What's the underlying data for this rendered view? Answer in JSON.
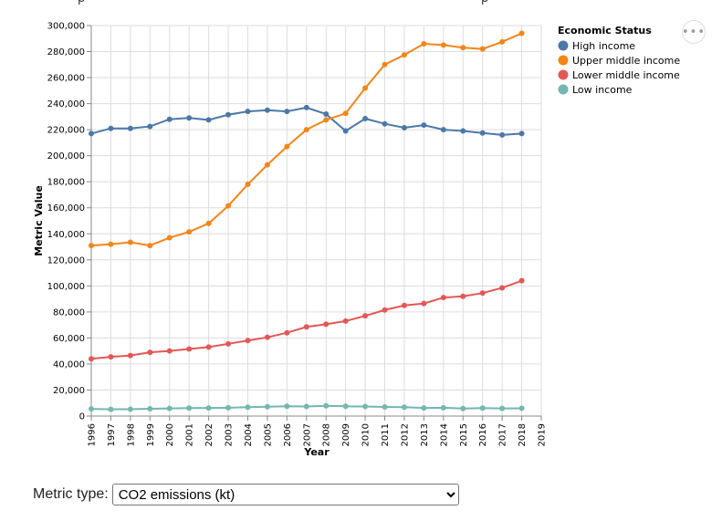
{
  "top_text": "p",
  "top_text2": "p",
  "actions_icon": "more-horizontal-icon",
  "control": {
    "label": "Metric type:",
    "selected": "CO2 emissions (kt)",
    "options": [
      "CO2 emissions (kt)"
    ]
  },
  "chart_data": {
    "type": "line",
    "xlabel": "Year",
    "ylabel": "Metric Value",
    "x_domain": [
      1996,
      2019
    ],
    "ylim": [
      0,
      300000
    ],
    "yticks": [
      "0",
      "20,000",
      "40,000",
      "60,000",
      "80,000",
      "100,000",
      "120,000",
      "140,000",
      "160,000",
      "180,000",
      "200,000",
      "220,000",
      "240,000",
      "260,000",
      "280,000",
      "300,000"
    ],
    "xticks": [
      "1996",
      "1997",
      "1998",
      "1999",
      "2000",
      "2001",
      "2002",
      "2003",
      "2004",
      "2005",
      "2006",
      "2007",
      "2008",
      "2009",
      "2010",
      "2011",
      "2012",
      "2013",
      "2014",
      "2015",
      "2016",
      "2017",
      "2018",
      "2019"
    ],
    "grid": true,
    "legend_title": "Economic Status",
    "legend_position": "right",
    "x": [
      1996,
      1997,
      1998,
      1999,
      2000,
      2001,
      2002,
      2003,
      2004,
      2005,
      2006,
      2007,
      2008,
      2009,
      2010,
      2011,
      2012,
      2013,
      2014,
      2015,
      2016,
      2017,
      2018
    ],
    "series": [
      {
        "name": "High income",
        "color": "#4c78a8",
        "values": [
          217000,
          221000,
          221000,
          222500,
          228000,
          229000,
          227500,
          231500,
          234000,
          235000,
          234000,
          237000,
          232000,
          219000,
          228500,
          224500,
          221500,
          223500,
          220000,
          219000,
          217500,
          216000,
          217000
        ]
      },
      {
        "name": "Upper middle income",
        "color": "#f58518",
        "values": [
          131000,
          132000,
          133500,
          131000,
          137000,
          141500,
          148000,
          161500,
          178000,
          193000,
          207000,
          220000,
          227500,
          232500,
          252000,
          270000,
          277500,
          286000,
          285000,
          283000,
          282000,
          287500,
          294000
        ]
      },
      {
        "name": "Lower middle income",
        "color": "#e45756",
        "values": [
          44000,
          45500,
          46500,
          49000,
          50000,
          51500,
          53000,
          55500,
          58000,
          60500,
          64000,
          68500,
          70500,
          73000,
          77000,
          81500,
          85000,
          86500,
          91000,
          92000,
          94500,
          98500,
          104000
        ]
      },
      {
        "name": "Low income",
        "color": "#72b7b2",
        "values": [
          5500,
          5200,
          5300,
          5600,
          5900,
          6100,
          6200,
          6400,
          6800,
          7200,
          7500,
          7400,
          7900,
          7500,
          7400,
          7000,
          6800,
          6200,
          6400,
          5800,
          6100,
          5900,
          6000
        ]
      }
    ]
  }
}
